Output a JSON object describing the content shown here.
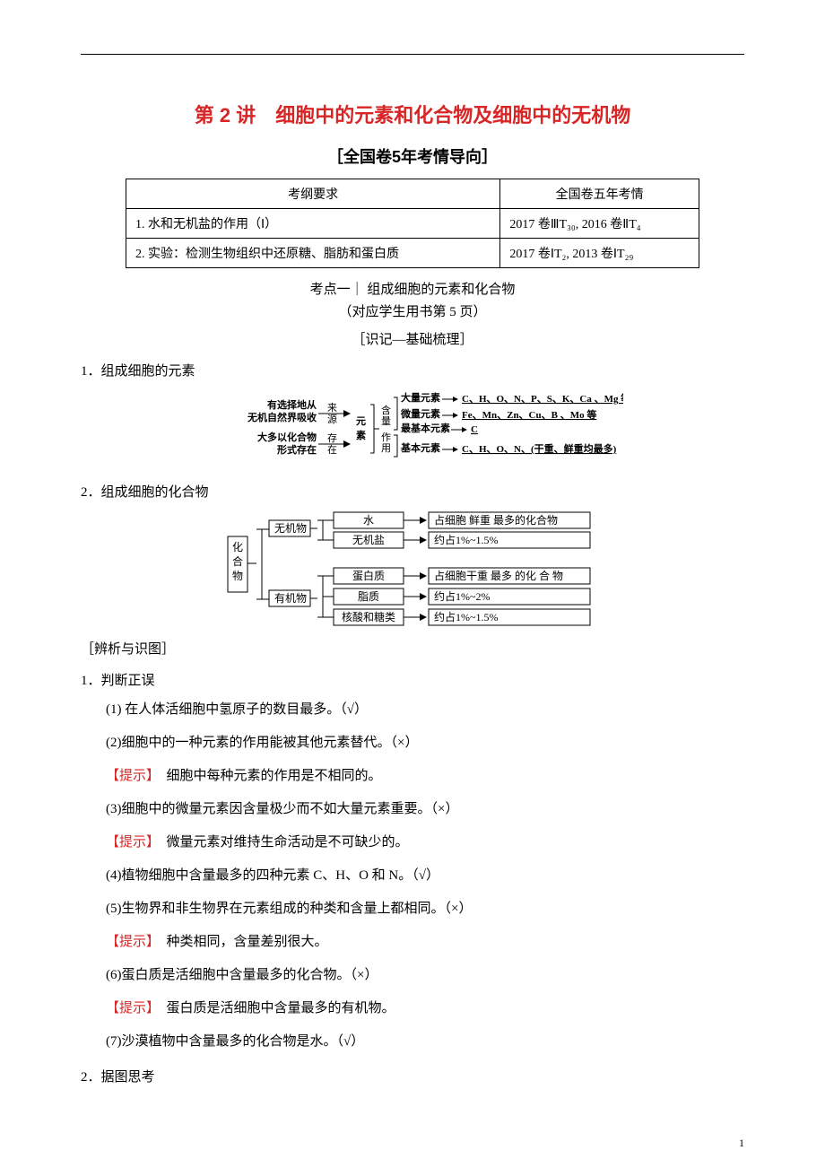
{
  "colors": {
    "accent": "#d82626",
    "text": "#000000",
    "border": "#000000",
    "bg": "#ffffff"
  },
  "title": "第 2 讲　细胞中的元素和化合物及细胞中的无机物",
  "subtitle": "［全国卷5年考情导向］",
  "examTable": {
    "headers": [
      "考纲要求",
      "全国卷五年考情"
    ],
    "rows": [
      [
        "1. 水和无机盐的作用（Ⅰ）",
        "2017 卷ⅢT₃₀, 2016 卷ⅡT₄"
      ],
      [
        "2. 实验：检测生物组织中还原糖、脂肪和蛋白质",
        "2017 卷ⅠT₂, 2013 卷ⅠT₂₉"
      ]
    ]
  },
  "sectionHeading": "考点一｜ 组成细胞的元素和化合物",
  "subNote": "（对应学生用书第 5 页）",
  "memoHeading": "［识记—基础梳理］",
  "h1": {
    "num": "1．",
    "text": "组成细胞的元素"
  },
  "diagram1": {
    "leftTop": "有选择地从",
    "leftTop2": "无机自然界吸收",
    "leftBot": "大多以化合物",
    "leftBot2": "形式存在",
    "arrowTop": "来源",
    "arrowBot": "存在",
    "center": "元素",
    "rightCol1": "含量",
    "rightCol2": "作用",
    "r1label": "大量元素",
    "r1val": "C、H、O、N、P、S、K、Ca 、Mg 等",
    "r2label": "微量元素",
    "r2val": "Fe、Mn、Zn、Cu、B 、Mo 等",
    "r3label": "最基本元素",
    "r3val": "C",
    "r4label": "基本元素",
    "r4val": "C、H、O、N、(干重、鲜重均最多)"
  },
  "h2": {
    "num": "2．",
    "text": "组成细胞的化合物"
  },
  "diagram2": {
    "root": "化合物",
    "g1": "无机物",
    "g2": "有机物",
    "rows": [
      {
        "mid": "水",
        "right": "占细胞 鲜重 最多的化合物"
      },
      {
        "mid": "无机盐",
        "right": "约占1%~1.5%"
      },
      {
        "mid": "蛋白质",
        "right": "占细胞干重 最多 的化 合 物"
      },
      {
        "mid": "脂质",
        "right": "约占1%~2%"
      },
      {
        "mid": "核酸和糖类",
        "right": "约占1%~1.5%"
      }
    ]
  },
  "bracketed": "［辨析与识图］",
  "sec1": {
    "num": "1．",
    "text": "判断正误"
  },
  "items": [
    {
      "text": "(1) 在人体活细胞中氢原子的数目最多。（√）"
    },
    {
      "text": "(2)细胞中的一种元素的作用能被其他元素替代。（×）"
    },
    {
      "hint": "【提示】",
      "text": "　细胞中每种元素的作用是不相同的。"
    },
    {
      "text": "(3)细胞中的微量元素因含量极少而不如大量元素重要。（×）"
    },
    {
      "hint": "【提示】",
      "text": "　微量元素对维持生命活动是不可缺少的。"
    },
    {
      "text": "(4)植物细胞中含量最多的四种元素 C、H、O 和 N。（√）"
    },
    {
      "text": "(5)生物界和非生物界在元素组成的种类和含量上都相同。（×）"
    },
    {
      "hint": "【提示】",
      "text": "　种类相同，含量差别很大。"
    },
    {
      "text": "(6)蛋白质是活细胞中含量最多的化合物。（×）"
    },
    {
      "hint": "【提示】",
      "text": "　蛋白质是活细胞中含量最多的有机物。"
    },
    {
      "text": "(7)沙漠植物中含量最多的化合物是水。（√）"
    }
  ],
  "sec2": {
    "num": "2．",
    "text": "据图思考"
  },
  "pageNum": "1"
}
